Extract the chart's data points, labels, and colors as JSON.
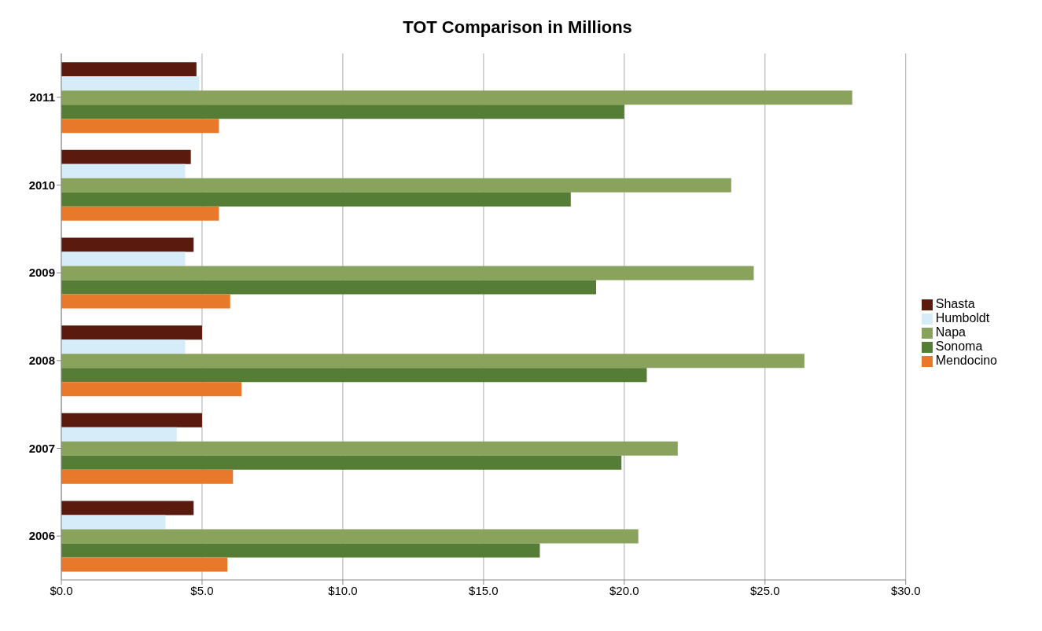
{
  "chart_data": {
    "type": "bar",
    "orientation": "horizontal",
    "title": "TOT Comparison in Millions",
    "categories": [
      "2011",
      "2010",
      "2009",
      "2008",
      "2007",
      "2006"
    ],
    "series": [
      {
        "name": "Shasta",
        "color": "#5a1a0e",
        "values": [
          4.8,
          4.6,
          4.7,
          5.0,
          5.0,
          4.7
        ]
      },
      {
        "name": "Humboldt",
        "color": "#d6ecf8",
        "values": [
          4.9,
          4.4,
          4.4,
          4.4,
          4.1,
          3.7
        ]
      },
      {
        "name": "Napa",
        "color": "#8aa35c",
        "values": [
          28.1,
          23.8,
          24.6,
          26.4,
          21.9,
          20.5
        ]
      },
      {
        "name": "Sonoma",
        "color": "#567d35",
        "values": [
          20.0,
          18.1,
          19.0,
          20.8,
          19.9,
          17.0
        ]
      },
      {
        "name": "Mendocino",
        "color": "#e8782a",
        "values": [
          5.6,
          5.6,
          6.0,
          6.4,
          6.1,
          5.9
        ]
      }
    ],
    "xlim": [
      0,
      30
    ],
    "xticks": [
      {
        "value": 0,
        "label": "$0.0"
      },
      {
        "value": 5,
        "label": "$5.0"
      },
      {
        "value": 10,
        "label": "$10.0"
      },
      {
        "value": 15,
        "label": "$15.0"
      },
      {
        "value": 20,
        "label": "$20.0"
      },
      {
        "value": 25,
        "label": "$25.0"
      },
      {
        "value": 30,
        "label": "$30.0"
      }
    ],
    "grid": "x",
    "legend": "right"
  }
}
